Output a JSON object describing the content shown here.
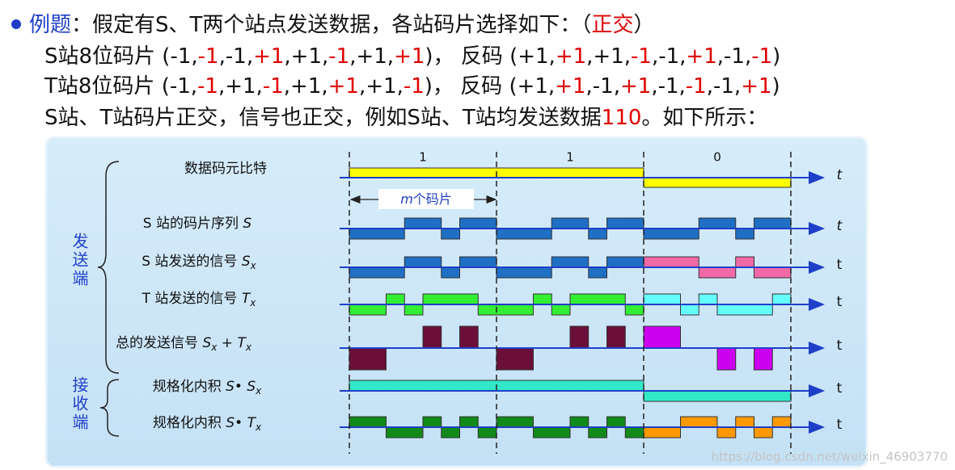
{
  "intro": [
    "例题",
    "：",
    "假定有S、T两个站点发送数据，各站码片选择如下：",
    "（",
    "正交",
    "）"
  ],
  "separator": ",",
  "codes": [
    {
      "name": "S站8位码片 (",
      "chips": [
        -1,
        -1,
        -1,
        {
          "value": 1,
          "label": "+1"
        },
        {
          "value": 1,
          "label": "+1"
        },
        -1,
        {
          "value": 1,
          "label": "+1"
        },
        {
          "value": 1,
          "label": "+1"
        }
      ],
      "middle": ")，  反码 (",
      "inverse": [
        {
          "value": 1,
          "label": "+1"
        },
        {
          "value": 1,
          "label": "+1"
        },
        {
          "value": 1,
          "label": "+1"
        },
        -1,
        -1,
        {
          "value": 1,
          "label": "+1"
        },
        -1,
        -1
      ],
      "end": ")"
    },
    {
      "name": "T站8位码片 (",
      "chips": [
        -1,
        -1,
        {
          "value": 1,
          "label": "+1"
        },
        -1,
        {
          "value": 1,
          "label": "+1"
        },
        {
          "value": 1,
          "label": "+1"
        },
        {
          "value": 1,
          "label": "+1"
        },
        -1
      ],
      "middle": ")，  反码 (",
      "inverse": [
        {
          "value": 1,
          "label": "+1"
        },
        {
          "value": 1,
          "label": "+1"
        },
        -1,
        {
          "value": 1,
          "label": "+1"
        },
        -1,
        -1,
        -1,
        {
          "value": 1,
          "label": "+1"
        }
      ],
      "end": ")"
    }
  ],
  "conclusion": [
    "S站、T站码片正交，信号也正交，例如S站、T站均发送数据",
    "110",
    "。如下所示："
  ],
  "diagram": {
    "bits": [
      1,
      1,
      0
    ],
    "axis_labels": [
      "t",
      "t",
      "t",
      "t",
      "t",
      "t",
      "t"
    ],
    "chip_span": [
      "m",
      "个码片"
    ],
    "rows": [
      [
        "数据码元比特"
      ],
      [
        "S 站的码片序列 ",
        "S"
      ],
      [
        "S 站发送的信号 ",
        "S",
        "x"
      ],
      [
        "T 站发送的信号 ",
        "T",
        "x"
      ],
      [
        "总的发送信号 ",
        "S",
        "x",
        " + ",
        "T",
        "x"
      ],
      [
        "规格化内积 ",
        "S",
        "• ",
        "S",
        "x"
      ],
      [
        "规格化内积 ",
        "S",
        "• ",
        "T",
        "x"
      ]
    ],
    "sides": [
      "发送端",
      "接收端"
    ]
  },
  "watermark": "https://blog.csdn.net/weixin_46903770"
}
